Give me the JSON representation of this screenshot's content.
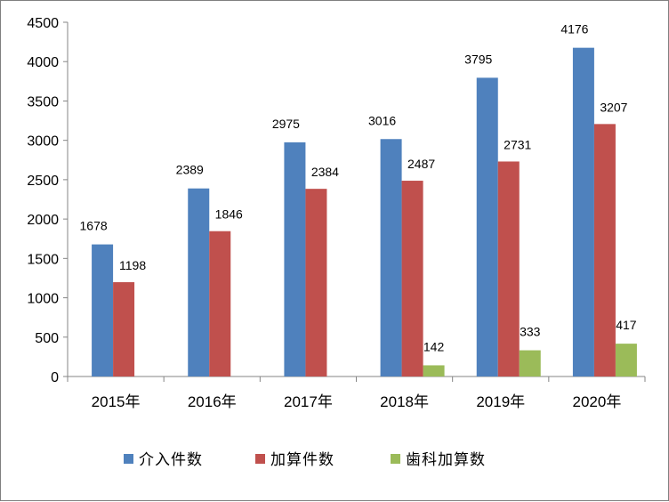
{
  "chart_data": {
    "type": "bar",
    "categories": [
      "2015年",
      "2016年",
      "2017年",
      "2018年",
      "2019年",
      "2020年"
    ],
    "series": [
      {
        "name": "介入件数",
        "color": "#4f81bd",
        "values": [
          1678,
          2389,
          2975,
          3016,
          3795,
          4176
        ]
      },
      {
        "name": "加算件数",
        "color": "#c0504d",
        "values": [
          1198,
          1846,
          2384,
          2487,
          2731,
          3207
        ]
      },
      {
        "name": "歯科加算数",
        "color": "#9bbb59",
        "values": [
          null,
          null,
          null,
          142,
          333,
          417
        ]
      }
    ],
    "ylim": [
      0,
      4500
    ],
    "yticks": [
      0,
      500,
      1000,
      1500,
      2000,
      2500,
      3000,
      3500,
      4000,
      4500
    ],
    "grid": false,
    "legend": "bottom",
    "data_labels": true
  }
}
